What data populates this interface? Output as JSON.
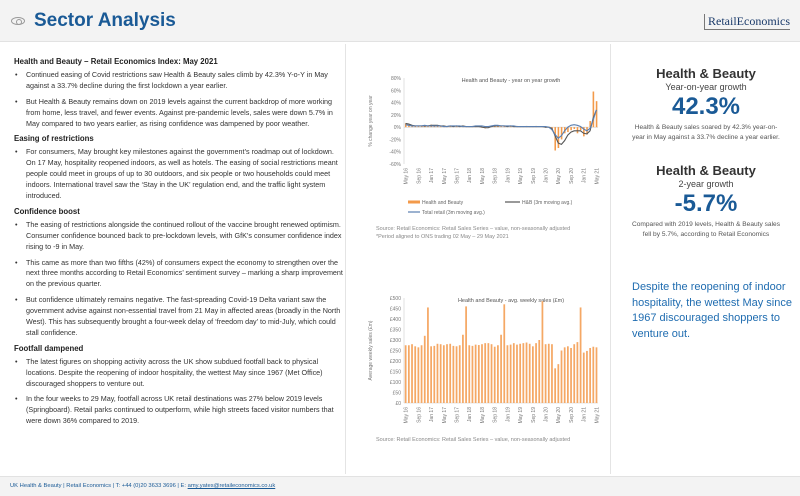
{
  "header": {
    "title": "Sector Analysis",
    "logo_text": "RetailEconomics",
    "icon": "eye-icon"
  },
  "left": {
    "heading": "Health and Beauty – Retail Economics Index: May 2021",
    "intro": [
      "Continued easing of Covid restrictions saw Health & Beauty sales climb by 42.3% Y-o-Y in May against a 33.7% decline during the first lockdown a year earlier.",
      "But Health & Beauty remains down on 2019 levels against the current backdrop of more working from home, less travel, and fewer events. Against pre-pandemic levels, sales were down 5.7% in May compared to two years earlier, as rising confidence was dampened by poor weather."
    ],
    "sections": [
      {
        "title": "Easing of restrictions",
        "bullets": [
          "For consumers, May brought key milestones against the government’s roadmap out of lockdown. On 17 May, hospitality reopened indoors, as well as hotels. The easing of social restrictions meant people could meet in groups of up to 30 outdoors, and six people or two households could meet indoors. International travel saw the ‘Stay in the UK’ regulation end, and the traffic light system introduced."
        ]
      },
      {
        "title": "Confidence boost",
        "bullets": [
          "The easing of restrictions alongside the continued rollout of the vaccine brought renewed optimism. Consumer confidence bounced back to pre-lockdown levels, with GfK’s consumer confidence index rising to -9 in May.",
          "This came as more than two fifths (42%) of consumers expect the economy to strengthen over the next three months according to Retail Economics’ sentiment survey – marking a sharp improvement on the previous quarter.",
          "But confidence ultimately remains negative. The fast-spreading Covid-19 Delta variant saw the government advise against non-essential travel from 21 May in affected areas (broadly in the North West). This has subsequently brought a four-week delay of ‘freedom day’ to mid-July, which could stall confidence."
        ]
      },
      {
        "title": "Footfall dampened",
        "bullets": [
          "The latest figures on shopping activity across the UK show subdued footfall back to physical locations. Despite the reopening of indoor hospitality, the wettest May since 1967 (Met Office) discouraged shoppers to venture out.",
          "In the four weeks to 29 May, footfall across UK retail destinations was 27% below 2019 levels (Springboard). Retail parks continued to outperform, while high streets faced visitor numbers that were down 36% compared to 2019."
        ]
      }
    ]
  },
  "chart_data": [
    {
      "type": "bar+line",
      "title": "Health and Beauty - year on year growth",
      "ylabel": "% change year on year",
      "ylim": [
        -60,
        80
      ],
      "yticks": [
        "80%",
        "60%",
        "40%",
        "20%",
        "0%",
        "-20%",
        "-40%",
        "-60%"
      ],
      "ytick_values": [
        80,
        60,
        40,
        20,
        0,
        -20,
        -40,
        -60
      ],
      "xtick_labels": [
        "May 16",
        "Sep 16",
        "Jan 17",
        "May 17",
        "Sep 17",
        "Jan 18",
        "May 18",
        "Sep 18",
        "Jan 19",
        "May 19",
        "Sep 19",
        "Jan 20",
        "May 20",
        "Sep 20",
        "Jan 21",
        "May 21"
      ],
      "series": [
        {
          "name": "Health and Beauty",
          "kind": "bar",
          "color": "#f39a4a",
          "values": [
            6,
            3,
            1,
            2,
            1,
            2,
            3,
            2,
            4,
            3,
            2,
            1,
            2,
            1,
            2,
            1,
            2,
            1,
            2,
            1,
            1,
            2,
            1,
            0,
            -1,
            -2,
            1,
            2,
            3,
            2,
            1,
            2,
            1,
            2,
            1,
            2,
            1,
            1,
            2,
            1,
            1,
            2,
            0,
            1,
            -1,
            1,
            -5,
            -38,
            -34,
            -20,
            -10,
            -8,
            -5,
            -3,
            -10,
            -5,
            -15,
            -12,
            10,
            58,
            42.3
          ]
        },
        {
          "name": "H&B (3m moving avg.)",
          "kind": "line",
          "color": "#555555",
          "values": [
            6,
            5,
            3,
            2,
            2,
            2,
            2,
            2,
            3,
            3,
            3,
            2,
            2,
            1,
            2,
            1,
            2,
            1,
            2,
            1,
            1,
            1,
            1,
            1,
            0,
            -1,
            -1,
            1,
            2,
            2,
            2,
            2,
            1,
            2,
            1,
            1,
            1,
            1,
            1,
            1,
            1,
            1,
            1,
            1,
            0,
            0,
            -2,
            -14,
            -26,
            -28,
            -22,
            -13,
            -8,
            -6,
            -6,
            -6,
            -10,
            -11,
            -6,
            15,
            28
          ]
        },
        {
          "name": "Total retail (3m moving avg.)",
          "kind": "line",
          "color": "#5b7fb0",
          "values": [
            4,
            3,
            2,
            2,
            2,
            2,
            3,
            2,
            2,
            2,
            2,
            2,
            1,
            1,
            2,
            2,
            2,
            2,
            1,
            1,
            1,
            1,
            2,
            2,
            2,
            1,
            1,
            2,
            3,
            3,
            2,
            2,
            2,
            2,
            2,
            1,
            1,
            1,
            1,
            1,
            1,
            1,
            1,
            1,
            1,
            0,
            -4,
            -12,
            -18,
            -14,
            -6,
            0,
            3,
            4,
            3,
            1,
            -3,
            -6,
            -2,
            12,
            28
          ]
        }
      ],
      "source": "Source: Retail Economics: Retail Sales Series – value, non-seasonally adjusted",
      "note": "*Period aligned to ONS trading 02 May – 29 May 2021",
      "legend": "bottom"
    },
    {
      "type": "bar",
      "title": "Health and Beauty - avg. weekly sales (£m)",
      "ylabel": "Average weekly sales (£m)",
      "ylim": [
        0,
        500
      ],
      "yticks": [
        "£500",
        "£450",
        "£400",
        "£350",
        "£300",
        "£250",
        "£200",
        "£150",
        "£100",
        "£50",
        "£0"
      ],
      "ytick_values": [
        500,
        450,
        400,
        350,
        300,
        250,
        200,
        150,
        100,
        50,
        0
      ],
      "xtick_labels": [
        "May 16",
        "Sep 16",
        "Jan 17",
        "May 17",
        "Sep 17",
        "Jan 18",
        "May 18",
        "Sep 18",
        "Jan 19",
        "May 19",
        "Sep 19",
        "Jan 20",
        "May 20",
        "Sep 20",
        "Jan 21",
        "May 21"
      ],
      "color": "#f5a865",
      "values": [
        275,
        275,
        280,
        270,
        265,
        275,
        320,
        455,
        270,
        272,
        282,
        280,
        275,
        280,
        282,
        272,
        270,
        275,
        325,
        460,
        275,
        272,
        278,
        276,
        280,
        285,
        285,
        280,
        268,
        275,
        325,
        470,
        275,
        278,
        285,
        278,
        282,
        285,
        288,
        282,
        270,
        285,
        300,
        485,
        280,
        282,
        280,
        165,
        185,
        250,
        265,
        270,
        262,
        280,
        290,
        455,
        240,
        248,
        262,
        268,
        265
      ],
      "source": "Source: Retail Economics: Retail Sales Series – value, non-seasonally adjusted"
    }
  ],
  "right": {
    "k1": {
      "heading": "Health & Beauty",
      "sub": "Year-on-year growth",
      "value": "42.3%",
      "desc": "Health & Beauty sales soared by 42.3% year-on-year in May against a 33.7% decline a year earlier."
    },
    "k2": {
      "heading": "Health & Beauty",
      "sub": "2-year growth",
      "value": "-5.7%",
      "desc": "Compared with 2019 levels, Health & Beauty sales fell by 5.7%, according to Retail Economics"
    },
    "quote": "Despite the reopening of indoor hospitality, the wettest May since 1967 discouraged shoppers to venture out."
  },
  "footer": {
    "text": "UK Health & Beauty | Retail Economics | T: +44 (0)20 3633 3696 | E: ",
    "email": "amy.yates@retaileconomics.co.uk"
  },
  "colors": {
    "brand_blue": "#1a5a96",
    "orange": "#f39a4a"
  }
}
